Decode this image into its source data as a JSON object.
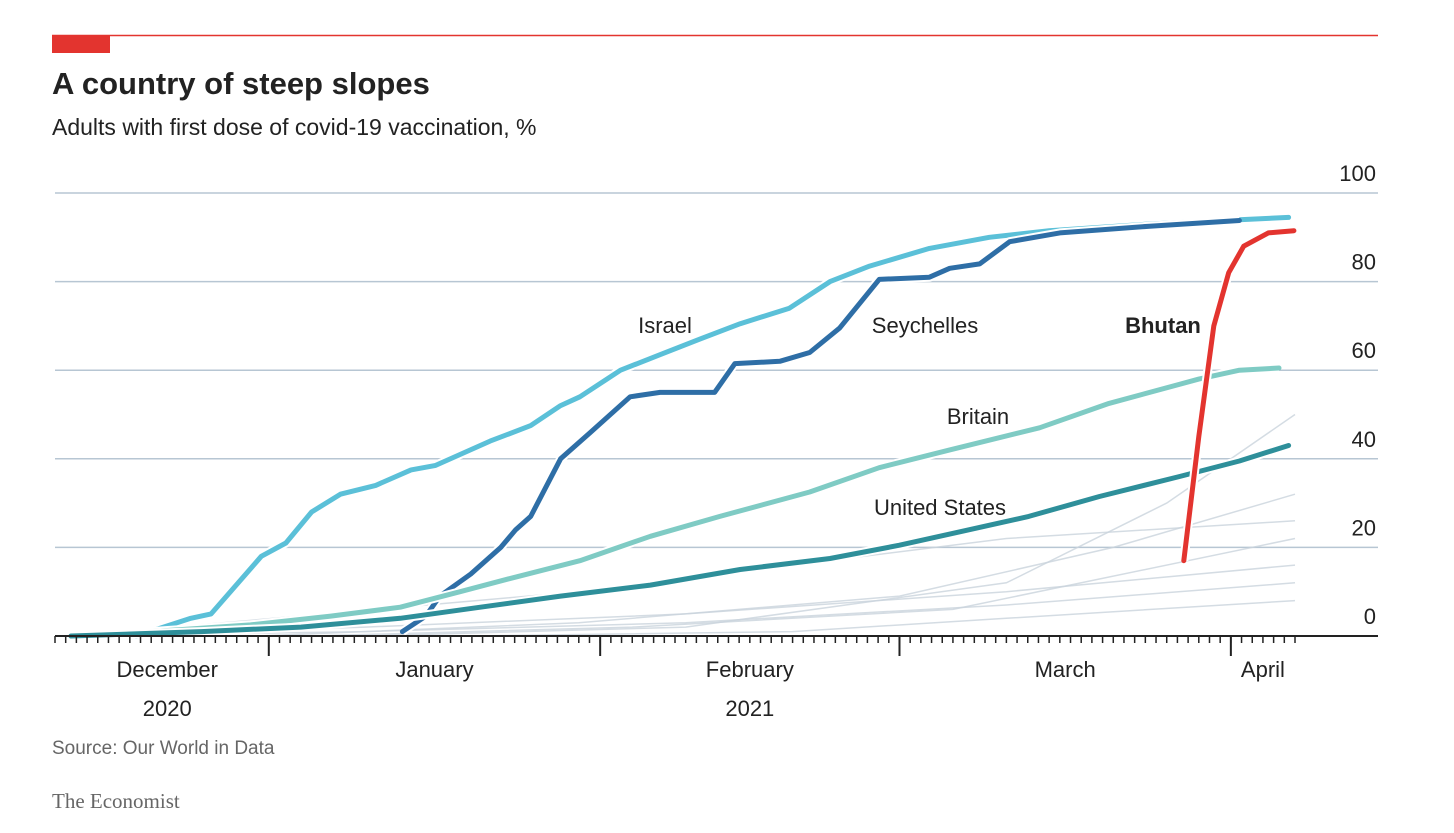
{
  "chart_data": {
    "type": "line",
    "title": "A country of steep slopes",
    "subtitle": "Adults with first dose of covid-19 vaccination, %",
    "source": "Source: Our World in Data",
    "brand": "The Economist",
    "xlim": [
      11,
      127
    ],
    "ylim": [
      0,
      100
    ],
    "yticks": [
      0,
      20,
      40,
      60,
      80,
      100
    ],
    "grid": true,
    "month_boundaries": [
      31,
      62,
      90,
      121
    ],
    "xticks": [
      {
        "value": 21.5,
        "label": "December"
      },
      {
        "value": 46.5,
        "label": "January"
      },
      {
        "value": 76,
        "label": "February"
      },
      {
        "value": 105.5,
        "label": "March"
      },
      {
        "value": 124,
        "label": "April"
      }
    ],
    "year_labels": [
      {
        "value": 21.5,
        "label": "2020"
      },
      {
        "value": 76,
        "label": "2021"
      }
    ],
    "background_color": "#c9d3dc",
    "background_series": [
      {
        "x": [
          12.5,
          40,
          70,
          100,
          127
        ],
        "values": [
          0,
          2,
          5,
          10,
          16
        ]
      },
      {
        "x": [
          12.5,
          40,
          70,
          100,
          127
        ],
        "values": [
          0,
          1,
          3,
          7,
          12
        ]
      },
      {
        "x": [
          30,
          60,
          90,
          110,
          127
        ],
        "values": [
          0,
          3,
          9,
          20,
          32
        ]
      },
      {
        "x": [
          40,
          70,
          100,
          115,
          127
        ],
        "values": [
          0,
          2,
          12,
          30,
          50
        ]
      },
      {
        "x": [
          35,
          65,
          95,
          127
        ],
        "values": [
          0,
          2,
          6,
          22
        ]
      },
      {
        "x": [
          50,
          80,
          100,
          127
        ],
        "values": [
          0,
          1,
          4,
          8
        ]
      },
      {
        "x": [
          12.5,
          60,
          100,
          127
        ],
        "values": [
          0,
          10,
          22,
          26
        ]
      }
    ],
    "series": [
      {
        "name": "Israel",
        "color": "#5bc0d8",
        "x": [
          18.6,
          23.7,
          25.6,
          30.3,
          32.6,
          35,
          37.7,
          41,
          44.3,
          46.6,
          51.7,
          55.5,
          58.3,
          60.1,
          63.9,
          67.6,
          71.3,
          75.1,
          79.7,
          83.5,
          87.2,
          92.8,
          98.4,
          104,
          113.4,
          126.4
        ],
        "values": [
          0,
          4,
          5,
          18,
          21,
          28,
          32,
          34,
          37.5,
          38.5,
          44,
          47.5,
          52,
          54,
          60,
          63.5,
          67,
          70.5,
          74,
          80,
          83.5,
          87.5,
          90,
          91.5,
          93,
          94.5
        ]
      },
      {
        "name": "Seychelles",
        "color": "#2e6ea6",
        "x": [
          43.5,
          45.7,
          47,
          49.9,
          52.7,
          54.1,
          55.5,
          58.3,
          61.1,
          64.8,
          67.6,
          72.7,
          74.6,
          78.8,
          81.6,
          84.4,
          88.1,
          92.8,
          94.7,
          97.5,
          100.3,
          105,
          113.4,
          121.8
        ],
        "values": [
          1,
          4.5,
          9,
          14,
          20,
          24,
          27,
          40,
          46,
          54,
          55,
          55,
          61.5,
          62,
          64,
          69.5,
          80.5,
          81,
          83,
          84,
          89,
          91,
          92.5,
          93.8
        ]
      },
      {
        "name": "Britain",
        "color": "#7fcbc4",
        "x": [
          12.5,
          20,
          29.3,
          36.8,
          43.3,
          48.9,
          53.6,
          60.1,
          66.7,
          73.2,
          81.6,
          88.1,
          94.7,
          103.1,
          109.6,
          118,
          121.8,
          125.5
        ],
        "values": [
          0,
          1,
          2.5,
          4.5,
          6.5,
          10,
          13,
          17,
          22.5,
          27,
          32.5,
          38,
          42,
          47,
          52.5,
          58,
          60,
          60.5
        ]
      },
      {
        "name": "United States",
        "color": "#2e8f9a",
        "x": [
          12.5,
          24.7,
          34,
          43.3,
          50.8,
          58.3,
          66.7,
          75.1,
          83.5,
          90,
          95.6,
          102.1,
          108.7,
          116.2,
          121.8,
          126.4
        ],
        "values": [
          0,
          1,
          2,
          4,
          6.5,
          9,
          11.5,
          15,
          17.5,
          20.5,
          23.5,
          27,
          31.5,
          36,
          39.5,
          43
        ]
      },
      {
        "name": "Bhutan",
        "color": "#e3342f",
        "x": [
          116.6,
          118,
          119.4,
          120.8,
          122.2,
          124.5,
          126.9
        ],
        "values": [
          17,
          45,
          70,
          82,
          88,
          91,
          91.5
        ]
      }
    ]
  }
}
